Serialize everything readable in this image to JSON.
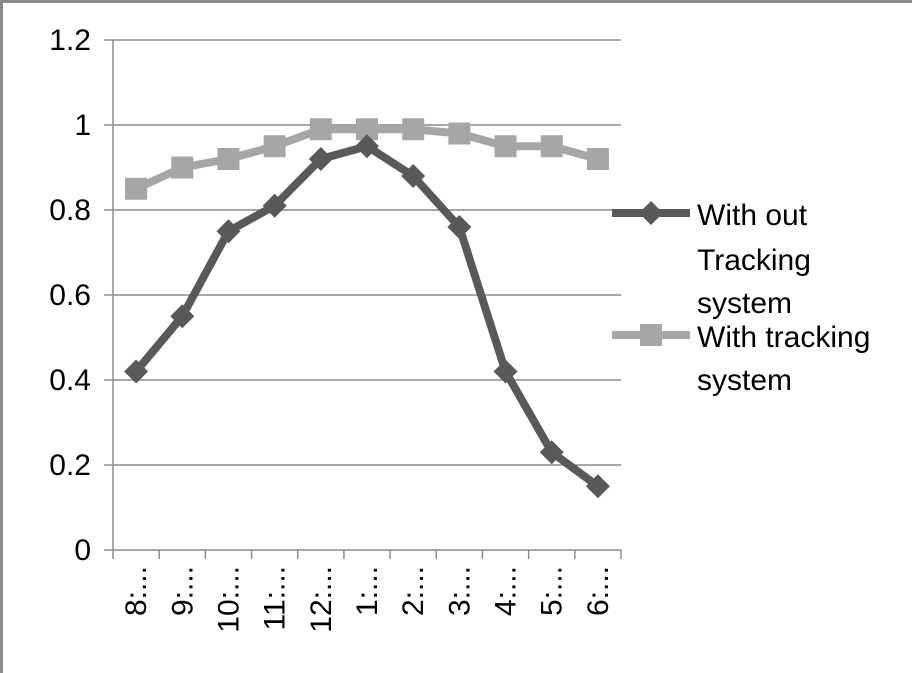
{
  "chart_data": {
    "type": "line",
    "title": "",
    "xlabel": "",
    "ylabel": "",
    "categories": [
      "8:...",
      "9:...",
      "10:...",
      "11:...",
      "12:...",
      "1:...",
      "2:...",
      "3:...",
      "4:...",
      "5:...",
      "6:..."
    ],
    "yticks": [
      "0",
      "0.2",
      "0.4",
      "0.6",
      "0.8",
      "1",
      "1.2"
    ],
    "ylim": [
      0,
      1.2
    ],
    "grid": "horizontal",
    "legend_position": "right",
    "series": [
      {
        "name_lines": [
          "With out",
          "Tracking",
          "system"
        ],
        "marker": "diamond",
        "color": "#595959",
        "values": [
          0.42,
          0.55,
          0.75,
          0.81,
          0.92,
          0.95,
          0.88,
          0.76,
          0.42,
          0.23,
          0.15
        ]
      },
      {
        "name_lines": [
          "With tracking",
          "system"
        ],
        "marker": "square",
        "color": "#a6a6a6",
        "values": [
          0.85,
          0.9,
          0.92,
          0.95,
          0.99,
          0.99,
          0.99,
          0.98,
          0.95,
          0.95,
          0.92
        ]
      }
    ]
  }
}
